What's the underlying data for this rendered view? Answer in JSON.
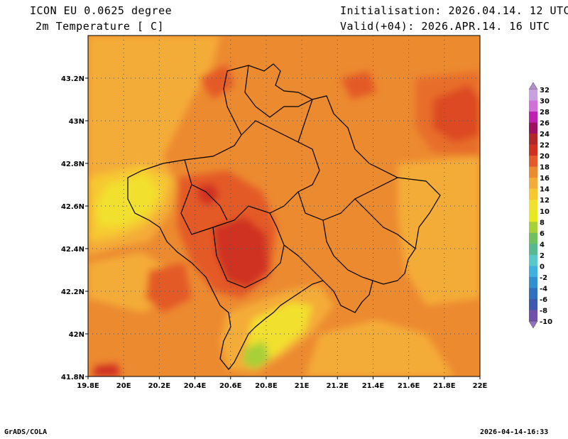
{
  "header": {
    "model": "ICON EU 0.0625 degree",
    "variable": "2m Temperature [ C]",
    "init": "Initialisation: 2026.04.14. 12 UTC",
    "valid": "Valid(+04): 2026.APR.14. 16 UTC"
  },
  "footer": {
    "left": "GrADS/COLA",
    "right": "2026-04-14-16:33"
  },
  "axes": {
    "x_ticks": [
      "19.8E",
      "20E",
      "20.2E",
      "20.4E",
      "20.6E",
      "20.8E",
      "21E",
      "21.2E",
      "21.4E",
      "21.6E",
      "21.8E",
      "22E"
    ],
    "y_ticks": [
      "43.2N",
      "43N",
      "42.8N",
      "42.6N",
      "42.4N",
      "42.2N",
      "42N",
      "41.8N"
    ],
    "lon_range": [
      19.8,
      22.0
    ],
    "lat_range": [
      41.8,
      43.4
    ],
    "grid": "dotted"
  },
  "colorbar": {
    "levels": [
      "32",
      "30",
      "28",
      "26",
      "24",
      "22",
      "20",
      "18",
      "16",
      "14",
      "12",
      "10",
      "8",
      "6",
      "4",
      "2",
      "0",
      "-2",
      "-4",
      "-6",
      "-8",
      "-10"
    ],
    "colors": [
      "#b48ecf",
      "#c8a0e0",
      "#d070d8",
      "#c020b0",
      "#a01060",
      "#b02828",
      "#d03020",
      "#e45a28",
      "#ec8a30",
      "#f4ac38",
      "#f6c830",
      "#f2e02e",
      "#e8e820",
      "#a8d038",
      "#70c060",
      "#58b890",
      "#58c8c8",
      "#40b0e0",
      "#3090d0",
      "#3070c0",
      "#4058b0",
      "#7050a8",
      "#9070c0"
    ]
  },
  "map": {
    "background": "#ec8a30"
  }
}
